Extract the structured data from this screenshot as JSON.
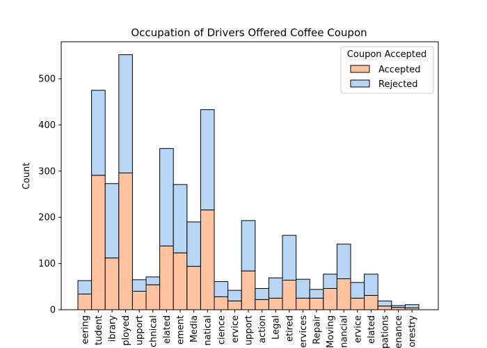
{
  "chart_data": {
    "type": "bar",
    "stacked": true,
    "title": "Occupation of Drivers Offered Coffee Coupon",
    "xlabel": "",
    "ylabel": "Count",
    "ylim": [
      0,
      580
    ],
    "yticks": [
      0,
      100,
      200,
      300,
      400,
      500
    ],
    "grid": false,
    "legend": {
      "title": "Coupon Accepted",
      "placement": "top-right"
    },
    "categories": [
      "eering",
      "tudent",
      "ibrary",
      "ployed",
      "upport",
      "chnical",
      "elated",
      "ement",
      "Media",
      "natical",
      "cience",
      "ervice",
      "upport",
      "action",
      "Legal",
      "etired",
      "ervices",
      "Repair",
      "Moving",
      "nancial",
      "ervice",
      "elated",
      "pations",
      "enance",
      "orestry"
    ],
    "series": [
      {
        "name": "Accepted",
        "color": "#ffc49f",
        "values": [
          34,
          291,
          112,
          296,
          40,
          54,
          138,
          123,
          94,
          216,
          28,
          19,
          84,
          22,
          25,
          64,
          25,
          25,
          46,
          67,
          25,
          31,
          8,
          5,
          4
        ]
      },
      {
        "name": "Rejected",
        "color": "#b7d6f6",
        "values": [
          29,
          184,
          161,
          256,
          25,
          17,
          211,
          148,
          96,
          217,
          33,
          23,
          109,
          24,
          44,
          97,
          41,
          19,
          31,
          75,
          34,
          46,
          11,
          4,
          7
        ]
      }
    ]
  }
}
